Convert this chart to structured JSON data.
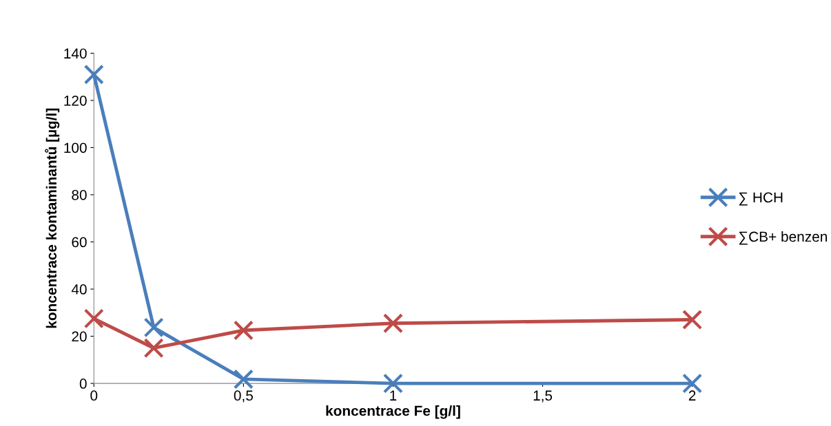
{
  "chart_data": {
    "type": "line",
    "xlabel": "koncentrace Fe [g/l]",
    "ylabel": "koncentrace kontaminantů [µg/l]",
    "x": [
      0,
      0.2,
      0.5,
      1,
      2
    ],
    "series": [
      {
        "name": "∑ HCH",
        "color": "#4a7ebb",
        "values": [
          131,
          23.7,
          1.8,
          0,
          0
        ]
      },
      {
        "name": "∑CB+ benzen",
        "color": "#be4b48",
        "values": [
          27.5,
          15,
          22.5,
          25.5,
          27
        ]
      }
    ],
    "xlim": [
      0,
      2
    ],
    "xticks": [
      0,
      {
        "value": 0.5,
        "label": "0,5"
      },
      1,
      {
        "value": 1.5,
        "label": "1,5"
      },
      2
    ],
    "ylim": [
      0,
      140
    ],
    "yticks": [
      0,
      20,
      40,
      60,
      80,
      100,
      120,
      140
    ],
    "grid": false,
    "legend": "right",
    "marker": "cross",
    "line_style": "solid"
  }
}
